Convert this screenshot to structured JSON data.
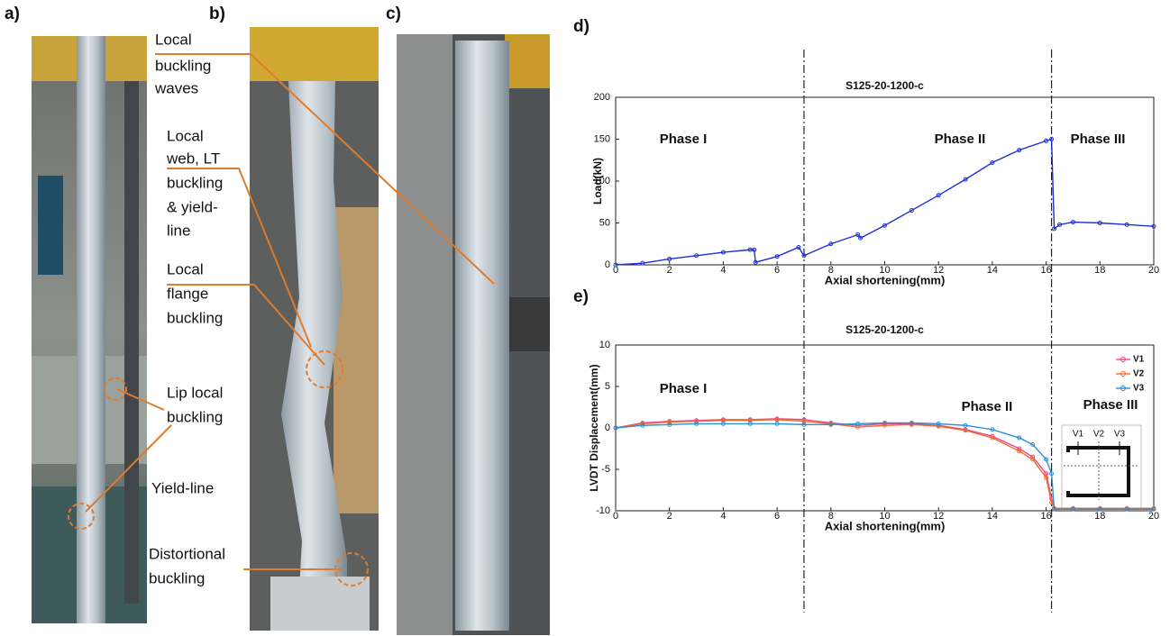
{
  "panel_labels": [
    "a)",
    "b)",
    "c)",
    "d)",
    "e)"
  ],
  "annotations": [
    {
      "lines": [
        "Local",
        "buckling",
        "waves"
      ]
    },
    {
      "lines": [
        "Local",
        "web, LT",
        "buckling",
        "& yield-",
        "line"
      ]
    },
    {
      "lines": [
        "Local",
        "flange",
        "buckling"
      ]
    },
    {
      "lines": [
        "Lip local",
        "buckling"
      ]
    },
    {
      "lines": [
        "Yield-line"
      ]
    },
    {
      "lines": [
        "Distortional",
        "buckling"
      ]
    }
  ],
  "inset_labels": [
    "V1",
    "V2",
    "V3"
  ],
  "chart_data": [
    {
      "type": "line",
      "title": "S125-20-1200-c",
      "x_label": "Axial shortening(mm)",
      "y_label": "Load(kN)",
      "phases": [
        "Phase I",
        "Phase II",
        "Phase III"
      ],
      "vlines": [
        7,
        16.2
      ],
      "x": [
        0,
        1,
        2,
        3,
        4,
        5,
        5.15,
        5.2,
        6,
        6.8,
        7,
        8,
        9,
        9.1,
        10,
        11,
        12,
        13,
        14,
        15,
        16,
        16.2,
        16.3,
        16.5,
        17,
        18,
        19,
        20
      ],
      "values": [
        0,
        2,
        7,
        11,
        15,
        18,
        18,
        3,
        10,
        21,
        11,
        25,
        36,
        32,
        47,
        65,
        83,
        102,
        122,
        137,
        148,
        150,
        43,
        48,
        51,
        50,
        48,
        46
      ],
      "color": "#1f2fd6",
      "xlim": [
        0,
        20
      ],
      "xticks": [
        0,
        2,
        4,
        6,
        8,
        10,
        12,
        14,
        16,
        18,
        20
      ],
      "ylim": [
        0,
        200
      ],
      "yticks": [
        0,
        50,
        100,
        150,
        200
      ],
      "grid": false
    },
    {
      "type": "line",
      "title": "S125-20-1200-c",
      "x_label": "Axial shortening(mm)",
      "y_label": "LVDT Displacement(mm)",
      "phases": [
        "Phase I",
        "Phase II",
        "Phase III"
      ],
      "legend": "top-right",
      "x": [
        0,
        1,
        2,
        3,
        4,
        5,
        6,
        7,
        8,
        9,
        10,
        11,
        12,
        13,
        14,
        15,
        15.5,
        16,
        16.2,
        16.3,
        17,
        18,
        19,
        20
      ],
      "series": [
        {
          "name": "V1",
          "color": "#e8488f",
          "values": [
            0,
            0.6,
            0.8,
            0.9,
            1,
            1,
            1.1,
            1,
            0.6,
            0.3,
            0.5,
            0.5,
            0.3,
            -0.2,
            -1,
            -2.5,
            -3.5,
            -5.5,
            -8.5,
            -9.8,
            -9.8,
            -9.8,
            -9.8,
            -9.8
          ]
        },
        {
          "name": "V2",
          "color": "#f26b2a",
          "values": [
            0,
            0.5,
            0.7,
            0.8,
            0.9,
            0.9,
            1,
            0.8,
            0.5,
            0.1,
            0.3,
            0.4,
            0.2,
            -0.3,
            -1.2,
            -2.8,
            -3.8,
            -6,
            -9,
            -9.7,
            -9.7,
            -9.7,
            -9.7,
            -9.7
          ]
        },
        {
          "name": "V3",
          "color": "#2c8fd4",
          "values": [
            0,
            0.3,
            0.4,
            0.5,
            0.5,
            0.5,
            0.5,
            0.4,
            0.4,
            0.5,
            0.6,
            0.6,
            0.5,
            0.3,
            -0.2,
            -1.2,
            -2,
            -3.8,
            -5.5,
            -9.8,
            -9.8,
            -9.8,
            -9.8,
            -9.8
          ]
        }
      ],
      "xlim": [
        0,
        20
      ],
      "xticks": [
        0,
        2,
        4,
        6,
        8,
        10,
        12,
        14,
        16,
        18,
        20
      ],
      "ylim": [
        -10,
        10
      ],
      "yticks": [
        -10,
        -5,
        0,
        5,
        10
      ],
      "grid": false
    }
  ]
}
